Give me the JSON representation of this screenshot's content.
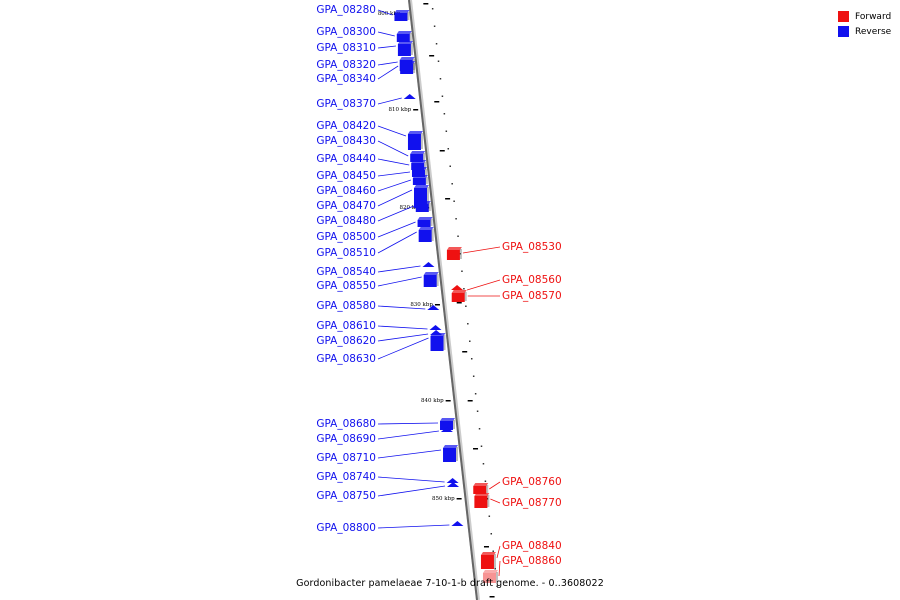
{
  "caption": "Gordonibacter pamelaeae 7-10-1-b draft genome. - 0..3608022",
  "legend": {
    "forward_label": "Forward",
    "reverse_label": "Reverse",
    "forward_color": "#ee1111",
    "reverse_color": "#1111ee"
  },
  "scale_labels": [
    "800 kbp",
    "810 kbp",
    "820 kbp",
    "830 kbp",
    "840 kbp",
    "850 kbp"
  ],
  "reverse_genes": [
    "GPA_08280",
    "GPA_08300",
    "GPA_08310",
    "GPA_08320",
    "GPA_08340",
    "GPA_08370",
    "GPA_08420",
    "GPA_08430",
    "GPA_08440",
    "GPA_08450",
    "GPA_08460",
    "GPA_08470",
    "GPA_08480",
    "GPA_08500",
    "GPA_08510",
    "GPA_08540",
    "GPA_08550",
    "GPA_08580",
    "GPA_08610",
    "GPA_08620",
    "GPA_08630",
    "GPA_08680",
    "GPA_08690",
    "GPA_08710",
    "GPA_08740",
    "GPA_08750",
    "GPA_08800"
  ],
  "forward_genes": [
    "GPA_08530",
    "GPA_08560",
    "GPA_08570",
    "GPA_08760",
    "GPA_08770",
    "GPA_08840",
    "GPA_08860"
  ]
}
